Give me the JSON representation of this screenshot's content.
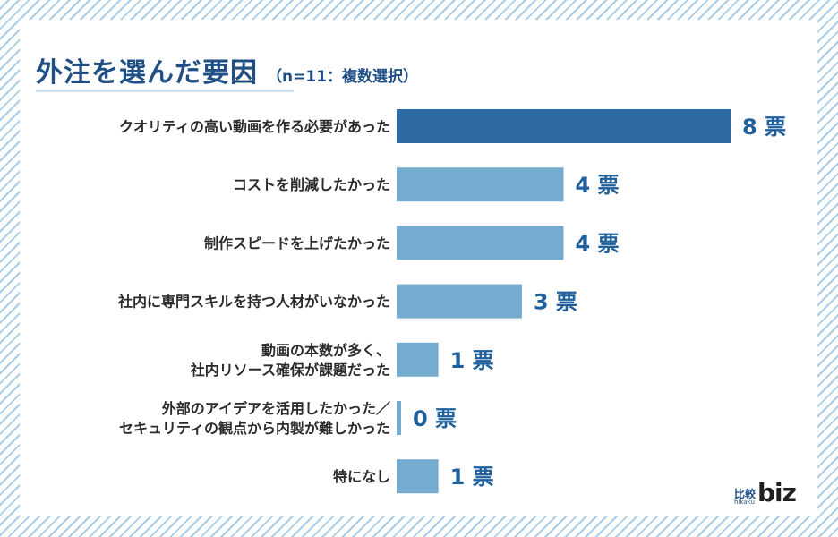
{
  "title": "外注を選んだ要因",
  "subtitle": "（n=11：複数選択）",
  "logo": {
    "jp": "比較",
    "romaji": "hikaku",
    "biz": "biz"
  },
  "colors": {
    "highlight": "#2e6aa3",
    "bar": "#74abcf",
    "value": "#1f5f9b",
    "title": "#1f4f84"
  },
  "chart_data": {
    "type": "bar",
    "orientation": "horizontal",
    "categories": [
      [
        "クオリティの高い動画を作る必要があった"
      ],
      [
        "コストを削減したかった"
      ],
      [
        "制作スピードを上げたかった"
      ],
      [
        "社内に専門スキルを持つ人材がいなかった"
      ],
      [
        "動画の本数が多く、",
        "社内リソース確保が課題だった"
      ],
      [
        "外部のアイデアを活用したかった／",
        "セキュリティの観点から内製が難しかった"
      ],
      [
        "特になし"
      ]
    ],
    "values": [
      8,
      4,
      4,
      3,
      1,
      0,
      1
    ],
    "value_labels": [
      "8 票",
      "4 票",
      "4 票",
      "3 票",
      "1 票",
      "0 票",
      "1 票"
    ],
    "highlight_index": 0,
    "xlim": [
      0,
      8
    ]
  }
}
